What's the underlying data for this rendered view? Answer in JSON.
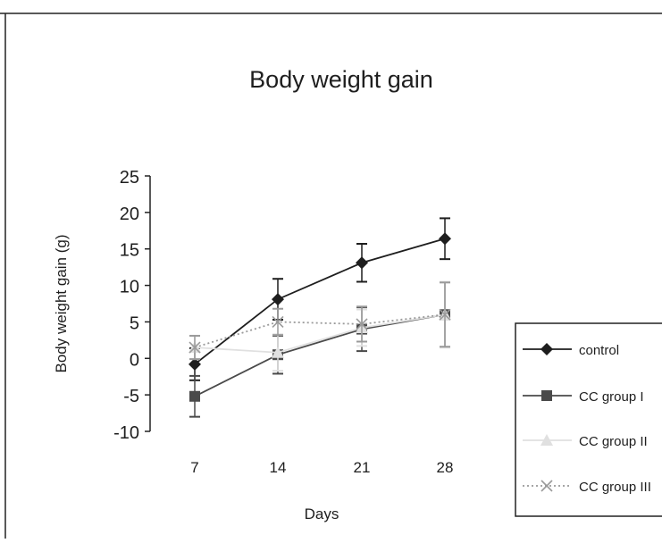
{
  "chart_data": {
    "type": "line",
    "title": "Body weight gain",
    "xlabel": "Days",
    "ylabel": "Body weight gain (g)",
    "categories": [
      "7",
      "14",
      "21",
      "28"
    ],
    "ylim": [
      -10,
      25
    ],
    "yticks": [
      "25",
      "20",
      "15",
      "10",
      "5",
      "0",
      "-5",
      "-10"
    ],
    "grid": false,
    "legend_position": "right",
    "series": [
      {
        "name": "control",
        "values": [
          -0.8,
          8.1,
          13.1,
          16.4
        ],
        "error": [
          2.2,
          2.8,
          2.6,
          2.8
        ],
        "marker": "diamond",
        "color": "#1e1e1e",
        "dash": "solid"
      },
      {
        "name": "CC group I",
        "values": [
          -5.2,
          0.5,
          4.0,
          6.0
        ],
        "error": [
          2.8,
          2.6,
          3.0,
          4.5
        ],
        "marker": "square",
        "color": "#4a4a4a",
        "dash": "solid"
      },
      {
        "name": "CC group II",
        "values": [
          1.5,
          0.8,
          4.2,
          6.0
        ],
        "error": [
          1.6,
          2.5,
          2.5,
          4.5
        ],
        "marker": "triangle",
        "color": "#e0e0e0",
        "dash": "solid"
      },
      {
        "name": "CC group III",
        "values": [
          1.5,
          5.0,
          4.7,
          6.0
        ],
        "error": [
          1.6,
          1.8,
          2.4,
          4.4
        ],
        "marker": "x",
        "color": "#9a9a9a",
        "dash": "dotted"
      }
    ]
  }
}
